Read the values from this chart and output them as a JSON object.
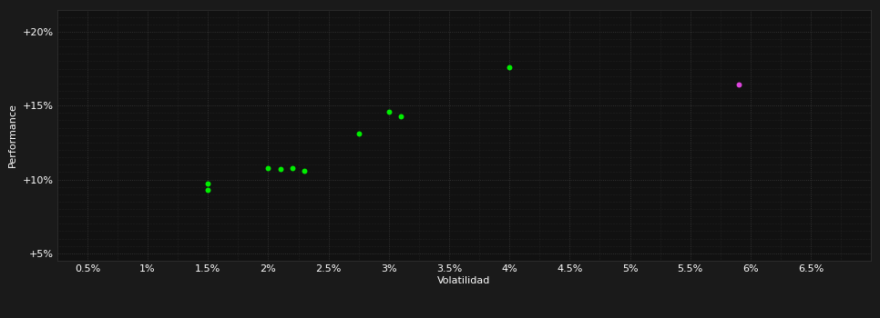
{
  "background_color": "#1a1a1a",
  "plot_bg_color": "#111111",
  "grid_color": "#3a3a3a",
  "text_color": "#ffffff",
  "xlabel": "Volatilidad",
  "ylabel": "Performance",
  "xlim": [
    0.0025,
    0.07
  ],
  "ylim": [
    0.045,
    0.215
  ],
  "xticks": [
    0.005,
    0.01,
    0.015,
    0.02,
    0.025,
    0.03,
    0.035,
    0.04,
    0.045,
    0.05,
    0.055,
    0.06,
    0.065
  ],
  "xtick_labels": [
    "0.5%",
    "1%",
    "1.5%",
    "2%",
    "2.5%",
    "3%",
    "3.5%",
    "4%",
    "4.5%",
    "5%",
    "5.5%",
    "6%",
    "6.5%"
  ],
  "yticks": [
    0.05,
    0.1,
    0.15,
    0.2
  ],
  "ytick_labels": [
    "+5%",
    "+10%",
    "+15%",
    "+20%"
  ],
  "green_points": [
    [
      0.015,
      0.097
    ],
    [
      0.015,
      0.093
    ],
    [
      0.02,
      0.108
    ],
    [
      0.021,
      0.107
    ],
    [
      0.022,
      0.108
    ],
    [
      0.023,
      0.106
    ],
    [
      0.0275,
      0.131
    ],
    [
      0.03,
      0.146
    ],
    [
      0.031,
      0.143
    ],
    [
      0.04,
      0.176
    ]
  ],
  "magenta_point": [
    0.059,
    0.164
  ],
  "green_color": "#00ee00",
  "magenta_color": "#dd44dd",
  "marker_size": 18,
  "font_size": 8,
  "label_font_size": 8
}
